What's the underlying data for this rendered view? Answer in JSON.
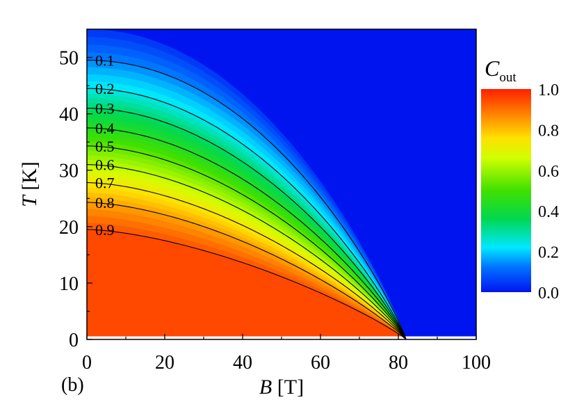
{
  "chart_data": {
    "type": "heatmap",
    "panel_label": "(b)",
    "xlabel_var": "B",
    "xlabel_unit": "[T]",
    "ylabel_var": "T",
    "ylabel_unit": "[K]",
    "xlim": [
      0,
      100
    ],
    "ylim": [
      0,
      55
    ],
    "x_ticks": [
      0,
      20,
      40,
      60,
      80,
      100
    ],
    "y_ticks": [
      0,
      10,
      20,
      30,
      40,
      50
    ],
    "colorbar": {
      "title_var": "C",
      "title_sub": "out",
      "range": [
        0.0,
        1.0
      ],
      "ticks": [
        "0.0",
        "0.2",
        "0.4",
        "0.6",
        "0.8",
        "1.0"
      ],
      "colormap": [
        "#0014f0",
        "#00a0ff",
        "#00ffff",
        "#00e000",
        "#80ff00",
        "#ffff00",
        "#ffa000",
        "#ff2000"
      ]
    },
    "field_endpoint_B": 82,
    "grid": false,
    "legend": "colorbar-right",
    "contours": [
      {
        "level": 0.1,
        "label": "0.1",
        "T0": 49.5
      },
      {
        "level": 0.2,
        "label": "0.2",
        "T0": 44.5
      },
      {
        "level": 0.3,
        "label": "0.3",
        "T0": 41.0
      },
      {
        "level": 0.4,
        "label": "0.4",
        "T0": 37.5
      },
      {
        "level": 0.5,
        "label": "0.5",
        "T0": 34.3
      },
      {
        "level": 0.6,
        "label": "0.6",
        "T0": 31.0
      },
      {
        "level": 0.7,
        "label": "0.7",
        "T0": 27.8
      },
      {
        "level": 0.8,
        "label": "0.8",
        "T0": 24.3
      },
      {
        "level": 0.9,
        "label": "0.9",
        "T0": 19.5
      }
    ]
  }
}
